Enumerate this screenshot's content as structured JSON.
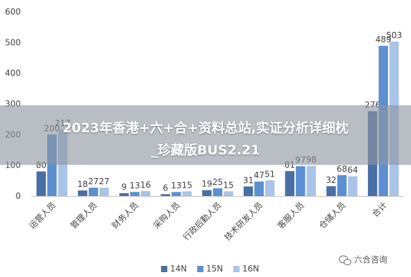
{
  "chart_data": {
    "type": "bar",
    "categories": [
      "运营人员",
      "管理人员",
      "财务人员",
      "采购人员",
      "行政后勤人员",
      "技术研发人员",
      "客服人员",
      "仓储人员",
      "合计"
    ],
    "series": [
      {
        "name": "14N",
        "values": [
          80,
          18,
          9,
          6,
          19,
          31,
          81,
          32,
          276
        ],
        "color": "#4a6fa5"
      },
      {
        "name": "15N",
        "values": [
          200,
          27,
          13,
          13,
          25,
          47,
          97,
          68,
          489
        ],
        "color": "#5b8fd1"
      },
      {
        "name": "16N",
        "values": [
          217,
          27,
          16,
          15,
          15,
          51,
          98,
          64,
          503
        ],
        "color": "#a9c4e6"
      }
    ],
    "yticks": [
      0,
      100,
      200,
      300,
      400,
      500,
      600
    ],
    "ylim": [
      0,
      600
    ],
    "legend_position": "bottom",
    "grid": false
  },
  "overlay": {
    "line1": "2023年香港+六+合+资料总站,实证分析详细枕",
    "line2": "_珍藏版BUS2.21"
  },
  "watermark": {
    "icon": "wechat-icon",
    "text": "六合咨询"
  }
}
